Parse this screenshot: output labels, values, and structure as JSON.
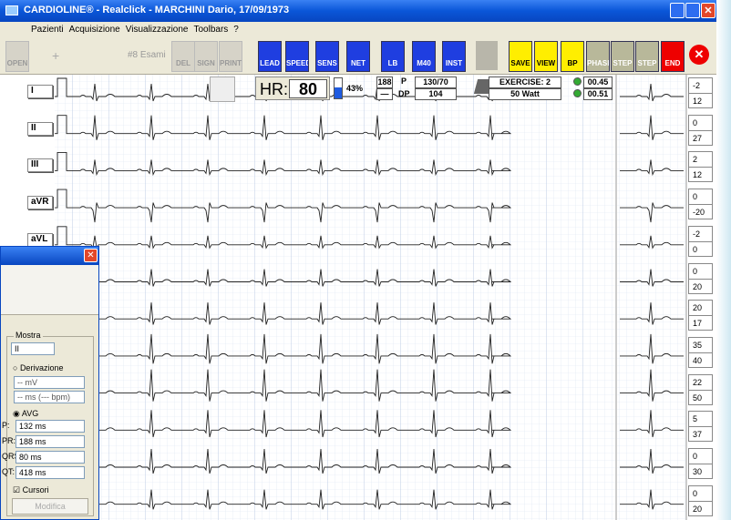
{
  "title_bar": {
    "title": "CARDIOLINE® - Realclick - MARCHINI Dario, 17/09/1973"
  },
  "menu": [
    "Pazienti",
    "Acquisizione",
    "Visualizzazione",
    "Toolbars",
    "?"
  ],
  "toolbar": {
    "exams": "#8 Esami",
    "buttons": [
      "OPEN",
      "DEL",
      "SIGN",
      "PRINT",
      "LEAD",
      "SPEED",
      "SENS",
      "NET",
      "LB",
      "M40",
      "INST",
      "SAVE",
      "VIEW",
      "BP",
      "PHASE",
      "STEP",
      "STEP",
      "END"
    ]
  },
  "status": {
    "hr_label": "HR:",
    "hr": 80,
    "percent": "43%",
    "pr": 188,
    "dash": "—",
    "p_label": "P",
    "p": "130/70",
    "dp_label": "DP",
    "dp": 104,
    "exercise": "EXERCISE: 2",
    "load": "50 Watt",
    "time1": "00.45",
    "time2": "00.51"
  },
  "leads": [
    "I",
    "II",
    "III",
    "aVR",
    "aVL"
  ],
  "measurements": [
    [
      -2,
      12
    ],
    [
      0,
      27
    ],
    [
      2,
      12
    ],
    [
      0,
      -20
    ],
    [
      -2,
      0
    ],
    [
      0,
      20
    ],
    [
      20,
      17
    ],
    [
      35,
      40
    ],
    [
      22,
      50
    ],
    [
      5,
      37
    ],
    [
      0,
      30
    ],
    [
      0,
      20
    ]
  ],
  "dialog": {
    "group": "Mostra",
    "lead": "II",
    "derivation": "Derivazione",
    "mv": "-- mV",
    "ms": "-- ms (--- bpm)",
    "avg": "AVG",
    "fields": [
      [
        "P:",
        "132 ms"
      ],
      [
        "PR:",
        "188 ms"
      ],
      [
        "QRS:",
        "80 ms"
      ],
      [
        "QT:",
        "418 ms"
      ]
    ],
    "cursors": "Cursori",
    "modify": "Modifica"
  }
}
